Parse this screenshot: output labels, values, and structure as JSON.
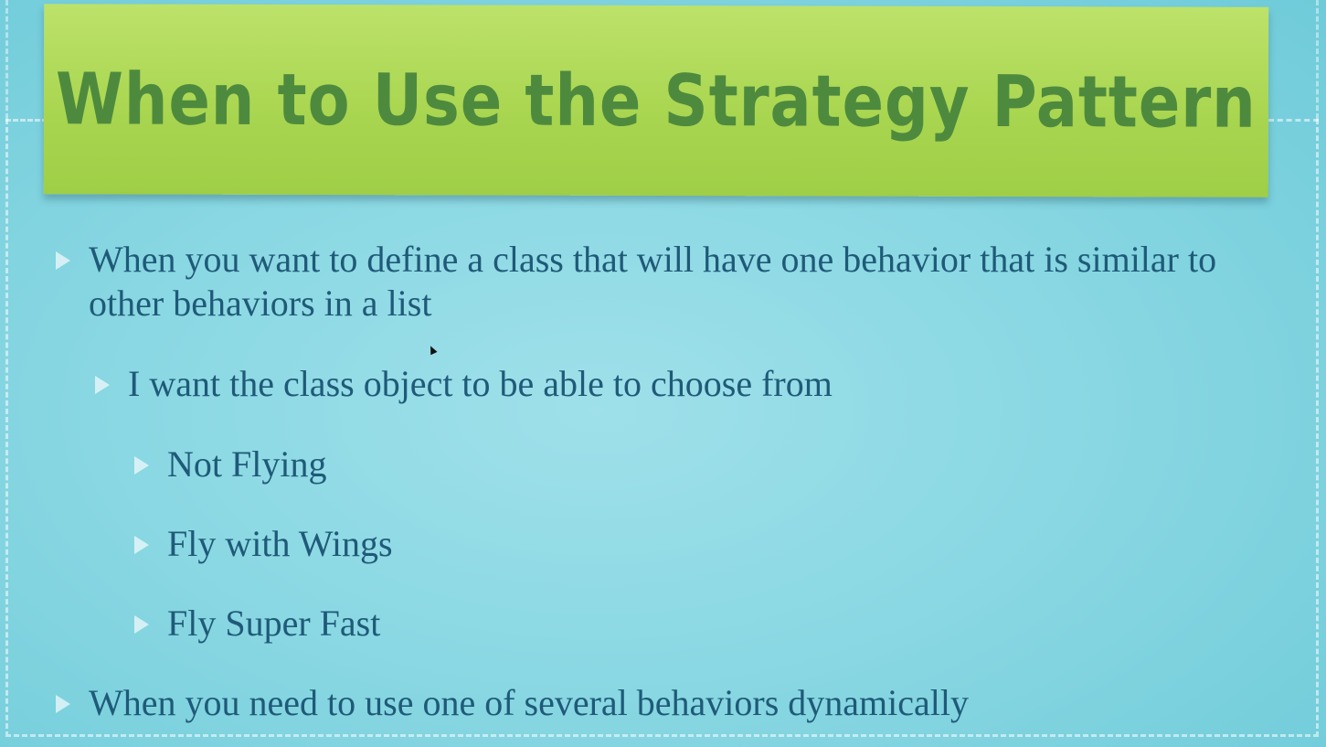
{
  "slide": {
    "title": "When to Use the Strategy Pattern",
    "bullets": [
      {
        "level": 1,
        "text": "When you want to define a class that will have one behavior that is similar to other behaviors in a list"
      },
      {
        "level": 2,
        "text": "I want the class object to be able to choose from"
      },
      {
        "level": 3,
        "text": "Not Flying"
      },
      {
        "level": 3,
        "text": "Fly with Wings"
      },
      {
        "level": 3,
        "text": "Fly Super Fast"
      },
      {
        "level": 1,
        "text": "When you need to use one of several behaviors dynamically"
      }
    ]
  },
  "colors": {
    "background": "#8ad8e3",
    "banner": "#a8d54f",
    "title_text": "#4e8a3e",
    "body_text": "#1f5a78"
  },
  "icons": {
    "bullet": "triangle-right-icon",
    "cursor": "mouse-pointer-icon"
  }
}
